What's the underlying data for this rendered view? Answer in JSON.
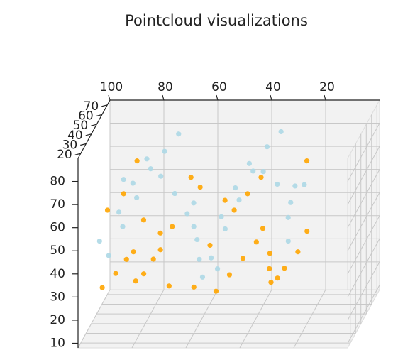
{
  "chart_data": {
    "type": "scatter3d",
    "title": "Pointcloud visualizations",
    "xlim": [
      100,
      0
    ],
    "xticks": [
      100,
      80,
      60,
      40,
      20
    ],
    "ylim": [
      15,
      75
    ],
    "yticks": [
      20,
      30,
      40,
      50,
      60,
      70
    ],
    "zlim": [
      8,
      90
    ],
    "zticks": [
      10,
      20,
      30,
      40,
      50,
      60,
      70,
      80
    ],
    "grid": true,
    "series": [
      {
        "color": "#ffa500",
        "x": [
          92,
          88,
          85,
          80,
          76,
          72,
          70,
          95,
          90,
          83,
          78,
          74,
          68,
          66,
          87,
          81,
          50,
          46,
          42,
          38,
          34,
          30,
          26,
          22,
          48,
          44,
          40,
          36,
          32,
          28,
          24,
          55,
          52,
          20,
          60,
          62
        ],
        "y": [
          20,
          25,
          30,
          22,
          35,
          28,
          40,
          45,
          50,
          33,
          27,
          38,
          24,
          55,
          60,
          42,
          21,
          26,
          31,
          36,
          41,
          23,
          28,
          33,
          45,
          50,
          55,
          38,
          30,
          25,
          60,
          35,
          48,
          40,
          30,
          52
        ],
        "z": [
          32,
          36,
          40,
          34,
          38,
          45,
          50,
          55,
          60,
          42,
          35,
          48,
          31,
          65,
          70,
          52,
          30,
          35,
          40,
          45,
          38,
          33,
          37,
          42,
          55,
          60,
          65,
          50,
          36,
          34,
          70,
          44,
          58,
          48,
          28,
          62
        ]
      },
      {
        "color": "#add8e6",
        "x": [
          90,
          86,
          82,
          78,
          74,
          70,
          94,
          88,
          84,
          80,
          76,
          72,
          68,
          92,
          52,
          48,
          44,
          40,
          36,
          32,
          28,
          24,
          50,
          46,
          42,
          38,
          34,
          30,
          26,
          22,
          58,
          62,
          64,
          56,
          60,
          54
        ],
        "y": [
          22,
          28,
          34,
          40,
          46,
          52,
          25,
          31,
          37,
          43,
          49,
          55,
          58,
          60,
          22,
          28,
          34,
          40,
          46,
          52,
          58,
          25,
          31,
          37,
          43,
          49,
          55,
          60,
          35,
          45,
          30,
          40,
          50,
          26,
          36,
          44
        ],
        "z": [
          45,
          55,
          65,
          75,
          80,
          85,
          50,
          60,
          70,
          78,
          68,
          58,
          48,
          62,
          44,
          54,
          64,
          74,
          82,
          86,
          60,
          50,
          58,
          68,
          76,
          70,
          62,
          52,
          56,
          66,
          40,
          50,
          56,
          34,
          46,
          30
        ]
      }
    ]
  }
}
